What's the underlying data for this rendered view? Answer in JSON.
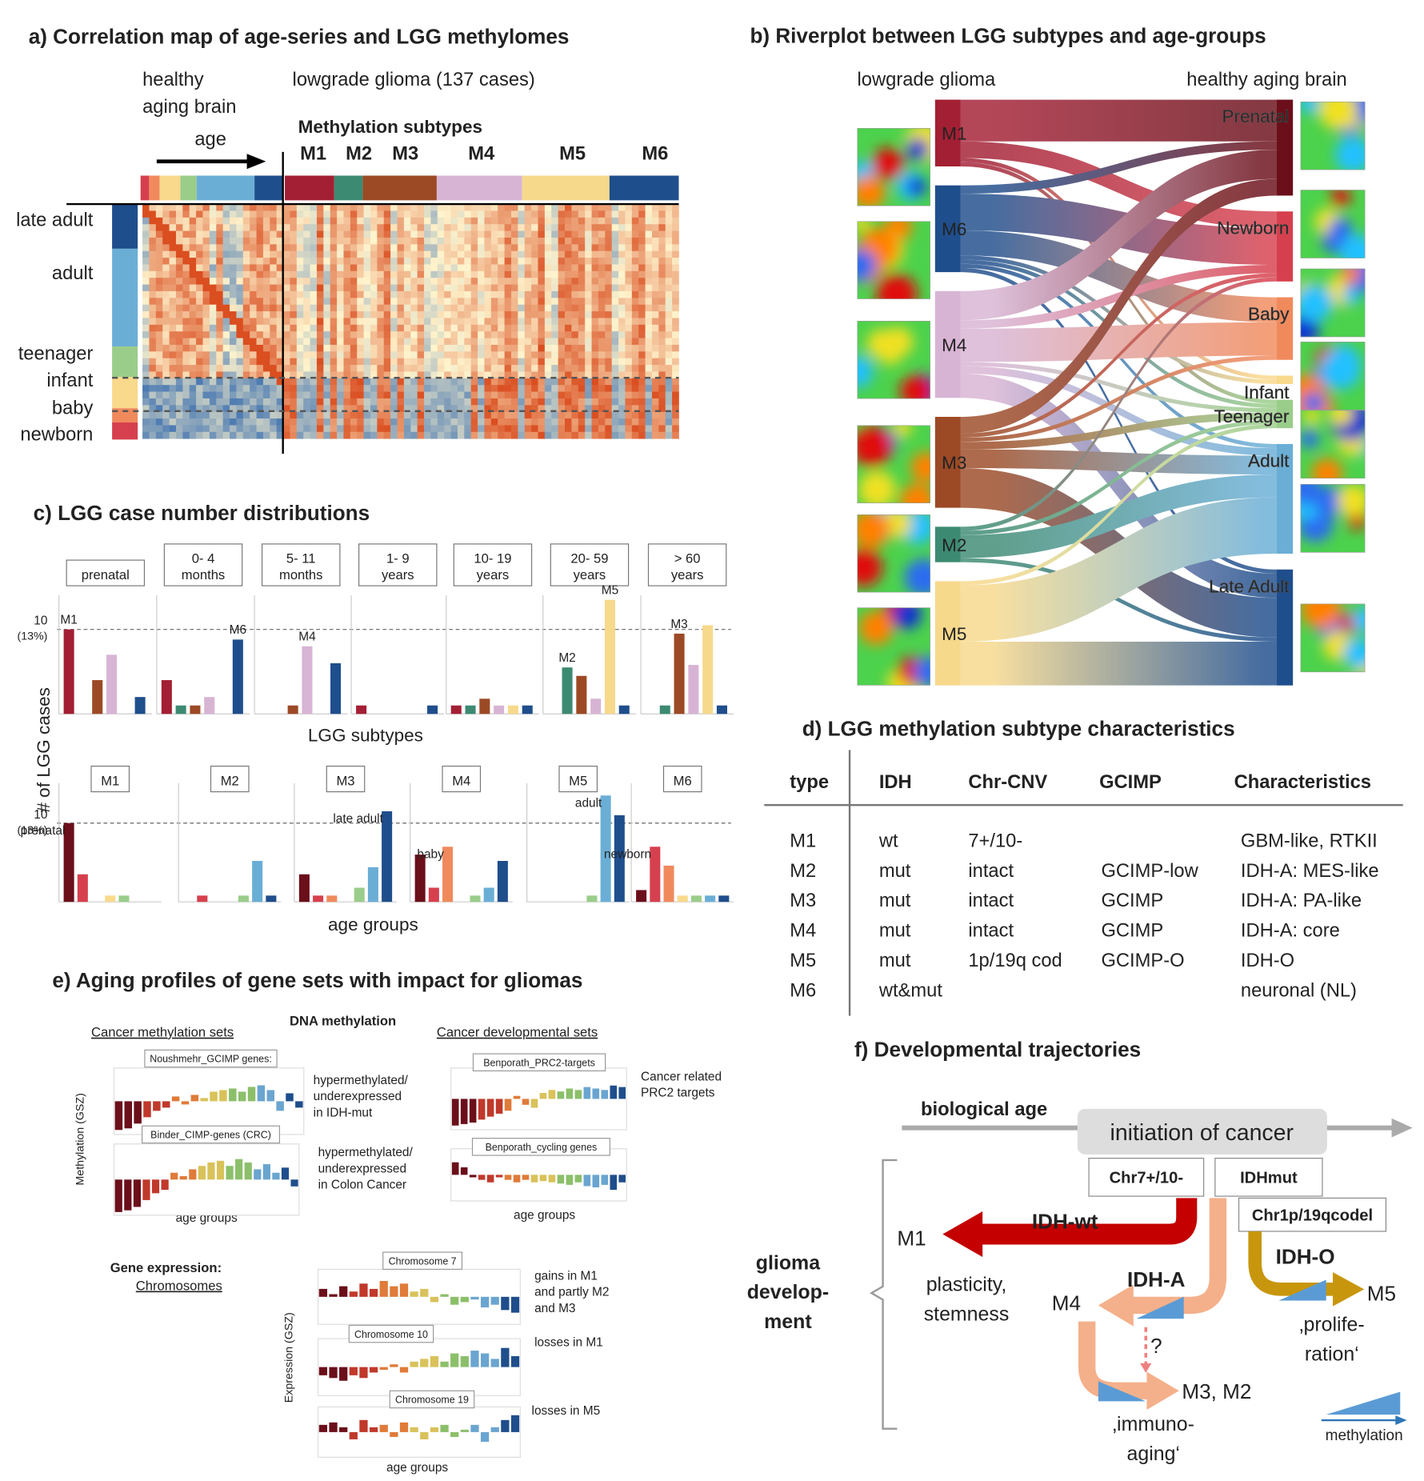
{
  "panel_a": {
    "title": "a) Correlation map of age-series and LGG methylomes",
    "healthy_label": [
      "healthy",
      "aging brain"
    ],
    "glioma_label": "lowgrade glioma (137 cases)",
    "age_label": "age",
    "subtypes_title": "Methylation subtypes",
    "subtypes": [
      "M1",
      "M2",
      "M3",
      "M4",
      "M5",
      "M6"
    ],
    "age_groups": [
      "late adult",
      "adult",
      "teenager",
      "infant",
      "baby",
      "newborn"
    ]
  },
  "subtype_colors": [
    "#a31f34",
    "#3d8a72",
    "#9c4a25",
    "#d8b4d4",
    "#f7d98c",
    "#1f4e8c"
  ],
  "age_colors": [
    "#6b0f1a",
    "#d6404e",
    "#f08a5d",
    "#f9d98c",
    "#9acd8a",
    "#6aaed6",
    "#1f4e8c"
  ],
  "panel_b": {
    "title": "b) Riverplot between LGG subtypes and age-groups",
    "left_label": "lowgrade glioma",
    "right_label": "healthy aging brain",
    "subtypes": [
      "M1",
      "M6",
      "M4",
      "M3",
      "M2",
      "M5"
    ],
    "age_groups": [
      "Prenatal",
      "Newborn",
      "Baby",
      "Infant",
      "Teenager",
      "Adult",
      "Late Adult"
    ]
  },
  "panel_c": {
    "title": "c) LGG case number distributions",
    "y_label": "# of LGG cases",
    "pct_label": "(13%)",
    "top": {
      "x_label": "LGG subtypes",
      "ylim": [
        0,
        14
      ],
      "yticks": [
        10
      ],
      "groups": [
        {
          "label": [
            "prenatal"
          ],
          "values": [
            10,
            0,
            4,
            7,
            0,
            2
          ],
          "annotations": [
            "M1"
          ]
        },
        {
          "label": [
            "0- 4",
            "months"
          ],
          "values": [
            4,
            1,
            1,
            2,
            0,
            8.8
          ],
          "annotations": [
            "M6"
          ]
        },
        {
          "label": [
            "5- 11",
            "months"
          ],
          "values": [
            0,
            0,
            1,
            8,
            0,
            6
          ],
          "annotations": [
            "M4"
          ]
        },
        {
          "label": [
            "1- 9",
            "years"
          ],
          "values": [
            1,
            0,
            0,
            0,
            0,
            1
          ],
          "annotations": []
        },
        {
          "label": [
            "10- 19",
            "years"
          ],
          "values": [
            1,
            1,
            1.8,
            1,
            1,
            1
          ],
          "annotations": []
        },
        {
          "label": [
            "20- 59",
            "years"
          ],
          "values": [
            0,
            5.5,
            4.5,
            1.8,
            13.5,
            1
          ],
          "annotations": [
            "M2",
            "M5"
          ]
        },
        {
          "label": [
            "> 60",
            "years"
          ],
          "values": [
            0,
            1,
            9.5,
            5.8,
            10.5,
            1
          ],
          "annotations": [
            "M3"
          ]
        }
      ]
    },
    "bottom": {
      "x_label": "age groups",
      "ylim": [
        0,
        14
      ],
      "yticks": [
        10
      ],
      "groups": [
        {
          "label": [
            "M1"
          ],
          "values": [
            10,
            3.5,
            0,
            0.8,
            0.8,
            0,
            0
          ],
          "annotations": [
            "prenatal"
          ]
        },
        {
          "label": [
            "M2"
          ],
          "values": [
            0,
            0.8,
            0,
            0,
            0.8,
            5.2,
            0.8
          ],
          "annotations": []
        },
        {
          "label": [
            "M3"
          ],
          "values": [
            3.5,
            0.8,
            0.8,
            0,
            1.8,
            4.4,
            11.5
          ],
          "annotations": [
            "late adult"
          ]
        },
        {
          "label": [
            "M4"
          ],
          "values": [
            6,
            1.8,
            7,
            0,
            0.8,
            1.8,
            5.2
          ],
          "annotations": [
            "baby"
          ]
        },
        {
          "label": [
            "M5"
          ],
          "values": [
            0,
            0,
            0,
            0,
            0.8,
            13.5,
            11
          ],
          "annotations": [
            "adult"
          ]
        },
        {
          "label": [
            "M6"
          ],
          "values": [
            1.5,
            7,
            4.6,
            0.8,
            0.8,
            0.8,
            0.8
          ],
          "annotations": [
            "newborn"
          ]
        }
      ]
    }
  },
  "panel_d": {
    "title": "d) LGG methylation subtype characteristics",
    "header": [
      "type",
      "IDH",
      "Chr-CNV",
      "GCIMP",
      "Characteristics"
    ],
    "rows": [
      [
        "M1",
        "wt",
        "7+/10-",
        null,
        "GBM-like, RTKII"
      ],
      [
        "M2",
        "mut",
        "intact",
        "GCIMP-low",
        "IDH-A: MES-like"
      ],
      [
        "M3",
        "mut",
        "intact",
        "GCIMP",
        "IDH-A: PA-like"
      ],
      [
        "M4",
        "mut",
        "intact",
        "GCIMP",
        "IDH-A: core"
      ],
      [
        "M5",
        "mut",
        "1p/19q cod",
        "GCIMP-O",
        "IDH-O"
      ],
      [
        "M6",
        "wt&mut",
        null,
        null,
        "neuronal (NL)"
      ]
    ]
  },
  "panel_e": {
    "title": "e) Aging profiles of gene sets with impact for gliomas",
    "methylation_heading": "DNA methylation",
    "left_heading": "Cancer methylation sets",
    "right_heading": "Cancer developmental sets",
    "methylation_axis": "Methylation (GSZ)",
    "expression_heading": "Gene expression:",
    "expression_subheading": "Chromosomes",
    "expression_axis": "Expression (GSZ)",
    "x_label": "age groups",
    "palette": [
      "#6b0f1a",
      "#c0392b",
      "#e07b39",
      "#d9c25a",
      "#8cbf6a",
      "#6aa5d0",
      "#1f4e8c"
    ],
    "charts": [
      {
        "name": "Noushmehr_GCIMP genes:",
        "values": [
          -0.9,
          -0.85,
          -0.7,
          -0.5,
          -0.3,
          -0.2,
          0.15,
          -0.1,
          0.2,
          0.1,
          0.3,
          0.35,
          0.4,
          0.3,
          0.45,
          0.5,
          0.35,
          -0.3,
          0.25,
          -0.2
        ],
        "note": [
          "hypermethylated/",
          "underexpressed",
          "in IDH-mut"
        ]
      },
      {
        "name": "Binder_CIMP-genes (CRC)",
        "values": [
          -0.95,
          -0.9,
          -0.8,
          -0.6,
          -0.4,
          -0.3,
          0.2,
          0.1,
          0.3,
          0.4,
          0.5,
          0.55,
          0.4,
          0.6,
          0.5,
          0.3,
          0.45,
          0.2,
          0.35,
          -0.2
        ],
        "note": [
          "hypermethylated/",
          "underexpressed",
          "in Colon Cancer"
        ]
      },
      {
        "name": "Benporath_PRC2-targets",
        "values": [
          -0.9,
          -0.85,
          -0.8,
          -0.7,
          -0.6,
          -0.5,
          -0.4,
          0.1,
          -0.2,
          -0.3,
          0.2,
          0.3,
          0.25,
          0.35,
          0.3,
          0.4,
          0.35,
          0.3,
          0.45,
          0.4
        ],
        "note": [
          "Cancer related",
          "PRC2 targets"
        ]
      },
      {
        "name": "Benporath_cycling genes",
        "values": [
          0.5,
          0.3,
          -0.1,
          -0.2,
          -0.3,
          -0.1,
          -0.2,
          -0.3,
          -0.2,
          -0.3,
          -0.25,
          -0.3,
          -0.35,
          -0.4,
          -0.3,
          -0.45,
          -0.5,
          -0.4,
          -0.6,
          -0.3
        ],
        "note": []
      },
      {
        "name": "Chromosome 7",
        "values": [
          0.3,
          0.1,
          0.4,
          0.2,
          0.5,
          0.3,
          0.6,
          0.4,
          0.5,
          0.2,
          0.3,
          -0.2,
          0.1,
          -0.3,
          -0.2,
          -0.1,
          -0.4,
          -0.3,
          -0.5,
          -0.6
        ],
        "note": [
          "gains in M1",
          "and partly M2",
          "and M3"
        ]
      },
      {
        "name": "Chromosome 10",
        "values": [
          -0.3,
          -0.4,
          -0.5,
          -0.3,
          -0.4,
          -0.2,
          -0.1,
          0.1,
          -0.2,
          0.2,
          0.3,
          0.4,
          0.2,
          0.5,
          0.4,
          0.6,
          0.5,
          0.3,
          0.7,
          0.4
        ],
        "note": [
          "losses  in M1"
        ]
      },
      {
        "name": "Chromosome 19",
        "values": [
          0.3,
          0.4,
          0.2,
          -0.3,
          0.5,
          0.2,
          0.3,
          -0.2,
          0.4,
          0.2,
          -0.3,
          0.2,
          0.3,
          -0.2,
          0.1,
          0.3,
          -0.4,
          0.2,
          0.5,
          0.7
        ],
        "note": [
          "losses  in M5"
        ]
      }
    ]
  },
  "panel_f": {
    "title": "f) Developmental trajectories",
    "axis_label": "biological age",
    "start": "initiation of cancer",
    "markers": [
      "Chr7+/10-",
      "IDHmut",
      "Chr1p/19qcodel"
    ],
    "phase": [
      "glioma",
      "develop-",
      "ment"
    ],
    "paths": [
      {
        "name": "IDH-wt",
        "target": "M1",
        "note": [
          "plasticity,",
          "stemness"
        ]
      },
      {
        "name": "IDH-A",
        "target": "M4",
        "note": []
      },
      {
        "name": "IDH-O",
        "target": "M5",
        "note": [
          "‚prolife-",
          "ration‘"
        ]
      }
    ],
    "secondary_target": "M3, M2",
    "secondary_note": [
      "‚immuno-",
      "aging‘"
    ],
    "uncertain": "?",
    "legend": "methylation"
  }
}
